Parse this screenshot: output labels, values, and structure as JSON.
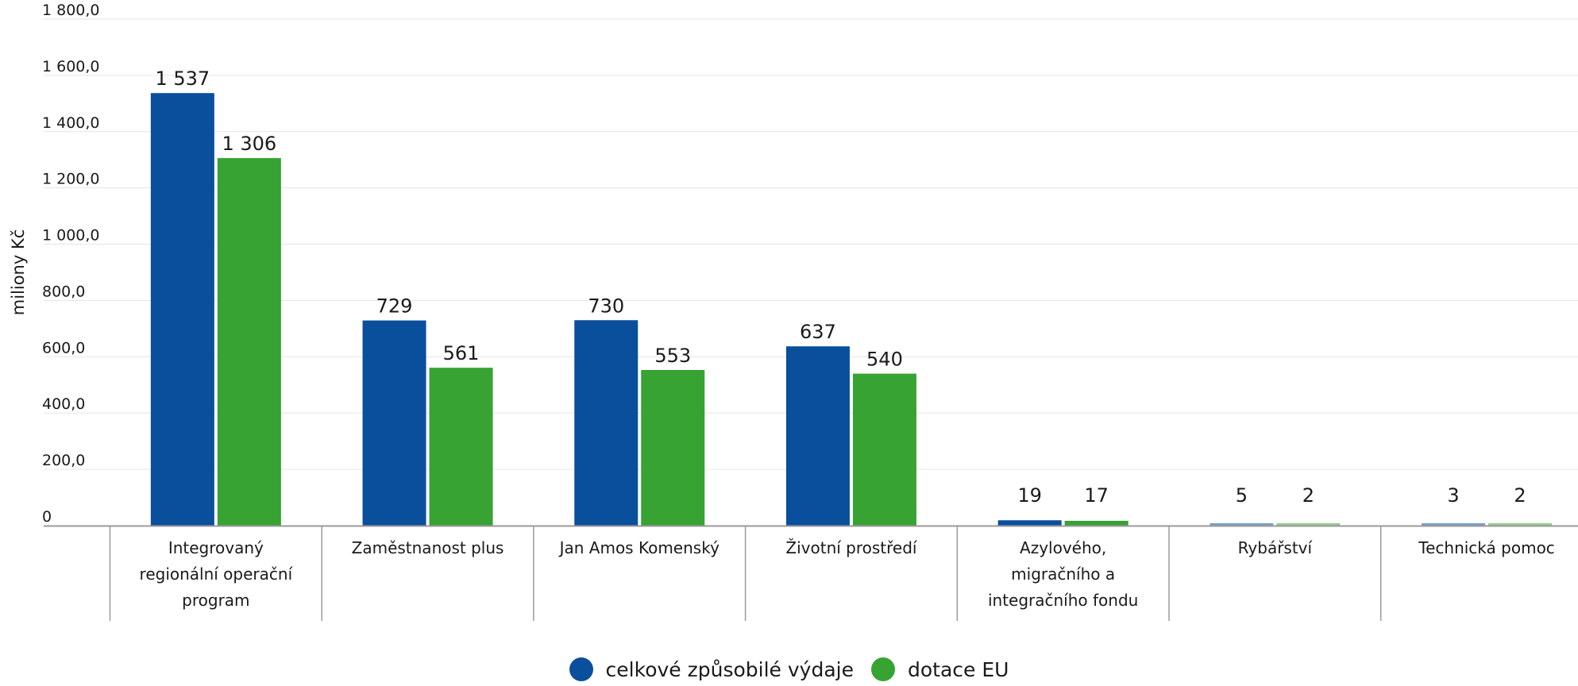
{
  "chart_data": {
    "type": "bar",
    "ylabel": "miliony Kč",
    "ylim": [
      0,
      1800
    ],
    "yticks": [
      0,
      200,
      400,
      600,
      800,
      1000,
      1200,
      1400,
      1600,
      1800
    ],
    "ytick_labels": [
      "0",
      "200,0",
      "400,0",
      "600,0",
      "800,0",
      "1 000,0",
      "1 200,0",
      "1 400,0",
      "1 600,0",
      "1 800,0"
    ],
    "grid": true,
    "legend_position": "bottom-center",
    "categories": [
      [
        "Integrovaný",
        "regionální operační",
        "program"
      ],
      [
        "Zaměstnanost plus"
      ],
      [
        "Jan Amos Komenský"
      ],
      [
        "Životní prostředí"
      ],
      [
        "Azylového,",
        "migračního a",
        "integračního fondu"
      ],
      [
        "Rybářství"
      ],
      [
        "Technická pomoc"
      ]
    ],
    "series": [
      {
        "name": "celkové způsobilé výdaje",
        "color": "#0a4f9c",
        "values": [
          1537,
          729,
          730,
          637,
          19,
          5,
          3
        ],
        "labels": [
          "1 537",
          "729",
          "730",
          "637",
          "19",
          "5",
          "3"
        ]
      },
      {
        "name": "dotace EU",
        "color": "#36a332",
        "values": [
          1306,
          561,
          553,
          540,
          17,
          2,
          2
        ],
        "labels": [
          "1 306",
          "561",
          "553",
          "540",
          "17",
          "2",
          "2"
        ]
      }
    ]
  }
}
